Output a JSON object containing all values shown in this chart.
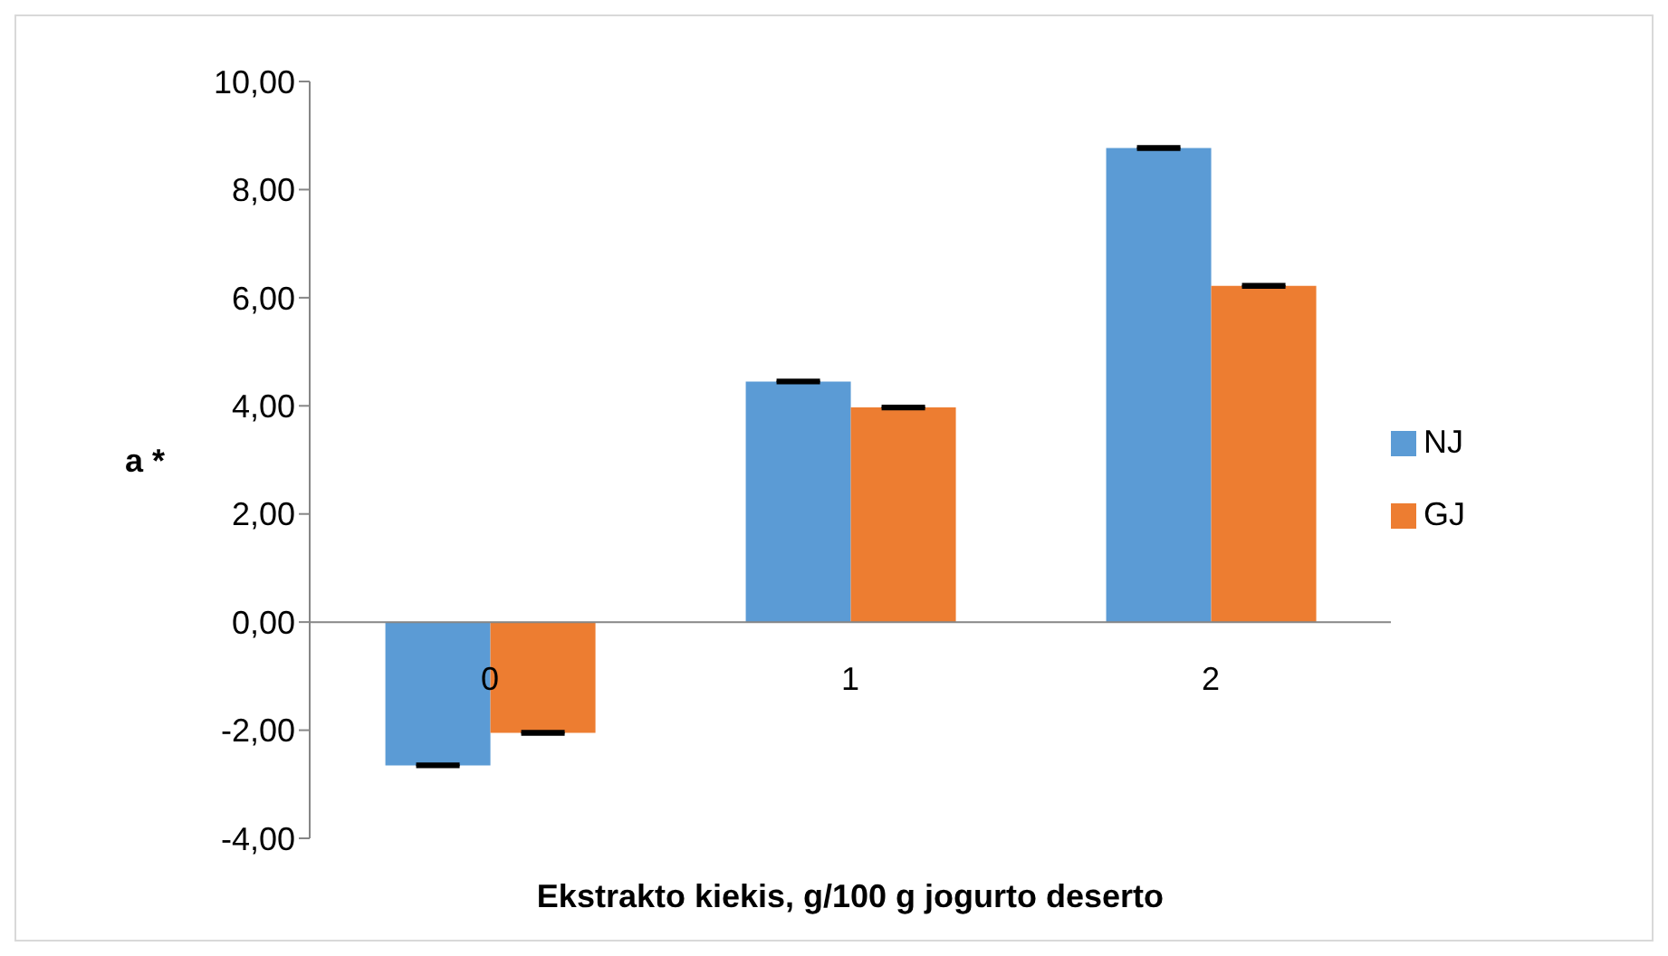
{
  "chart_data": {
    "type": "bar",
    "xlabel": "Ekstrakto kiekis, g/100 g jogurto deserto",
    "ylabel": "a *",
    "categories": [
      "0",
      "1",
      "2"
    ],
    "series": [
      {
        "name": "NJ",
        "color": "#5b9bd5",
        "values": [
          -2.65,
          4.45,
          8.77
        ],
        "errors": [
          0.02,
          0.02,
          0.02
        ]
      },
      {
        "name": "GJ",
        "color": "#ed7d31",
        "values": [
          -2.05,
          3.97,
          6.22
        ],
        "errors": [
          0.02,
          0.02,
          0.02
        ]
      }
    ],
    "ylim": [
      -4,
      10
    ],
    "yticks": [
      {
        "value": -4,
        "label": "-4,00"
      },
      {
        "value": -2,
        "label": "-2,00"
      },
      {
        "value": 0,
        "label": "0,00"
      },
      {
        "value": 2,
        "label": "2,00"
      },
      {
        "value": 4,
        "label": "4,00"
      },
      {
        "value": 6,
        "label": "6,00"
      },
      {
        "value": 8,
        "label": "8,00"
      },
      {
        "value": 10,
        "label": "10,00"
      }
    ],
    "grid": false,
    "legend": "right"
  }
}
